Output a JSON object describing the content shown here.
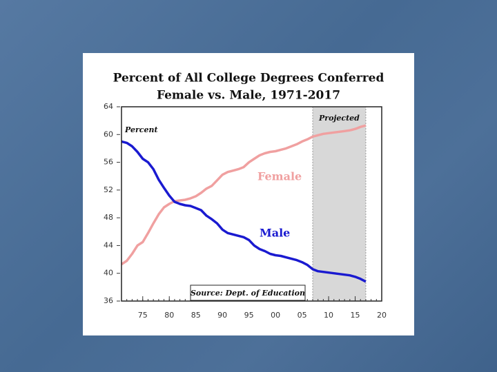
{
  "chart_data": {
    "type": "line",
    "title": [
      "Percent of All College Degrees Conferred",
      "Female vs. Male, 1971-2017"
    ],
    "y_label": "Percent",
    "projected_label": "Projected",
    "projected_span": [
      2007,
      2017
    ],
    "source": "Source: Dept. of Education",
    "x": [
      1971,
      1972,
      1973,
      1974,
      1975,
      1976,
      1977,
      1978,
      1979,
      1980,
      1981,
      1982,
      1983,
      1984,
      1985,
      1986,
      1987,
      1988,
      1989,
      1990,
      1991,
      1992,
      1993,
      1994,
      1995,
      1996,
      1997,
      1998,
      1999,
      2000,
      2001,
      2002,
      2003,
      2004,
      2005,
      2006,
      2007,
      2008,
      2009,
      2010,
      2011,
      2012,
      2013,
      2014,
      2015,
      2016,
      2017
    ],
    "series": [
      {
        "name": "Female",
        "color": "#f0a0a0",
        "values": [
          41.3,
          41.8,
          42.8,
          44.0,
          44.5,
          45.8,
          47.2,
          48.5,
          49.5,
          50.0,
          50.4,
          50.5,
          50.6,
          50.8,
          51.1,
          51.6,
          52.2,
          52.6,
          53.4,
          54.2,
          54.6,
          54.8,
          55.0,
          55.3,
          56.0,
          56.5,
          57.0,
          57.3,
          57.5,
          57.6,
          57.8,
          58.0,
          58.3,
          58.6,
          59.0,
          59.3,
          59.7,
          59.9,
          60.1,
          60.2,
          60.3,
          60.4,
          60.5,
          60.6,
          60.8,
          61.1,
          61.3
        ]
      },
      {
        "name": "Male",
        "color": "#1a1ad0",
        "values": [
          59.0,
          58.8,
          58.3,
          57.5,
          56.5,
          56.0,
          55.0,
          53.5,
          52.3,
          51.2,
          50.3,
          50.0,
          49.8,
          49.7,
          49.4,
          49.1,
          48.3,
          47.8,
          47.2,
          46.3,
          45.8,
          45.6,
          45.4,
          45.2,
          44.8,
          44.0,
          43.5,
          43.2,
          42.8,
          42.6,
          42.5,
          42.3,
          42.1,
          41.9,
          41.6,
          41.2,
          40.6,
          40.3,
          40.2,
          40.1,
          40.0,
          39.9,
          39.8,
          39.7,
          39.5,
          39.2,
          38.8
        ]
      }
    ],
    "xlim": [
      1971,
      2020
    ],
    "xticks": [
      {
        "value": 1975,
        "label": "75"
      },
      {
        "value": 1980,
        "label": "80"
      },
      {
        "value": 1985,
        "label": "85"
      },
      {
        "value": 1990,
        "label": "90"
      },
      {
        "value": 1995,
        "label": "95"
      },
      {
        "value": 2000,
        "label": "00"
      },
      {
        "value": 2005,
        "label": "05"
      },
      {
        "value": 2010,
        "label": "10"
      },
      {
        "value": 2015,
        "label": "15"
      },
      {
        "value": 2020,
        "label": "20"
      }
    ],
    "ylim": [
      36,
      64
    ],
    "yticks": [
      36,
      40,
      44,
      48,
      52,
      56,
      60,
      64
    ]
  }
}
